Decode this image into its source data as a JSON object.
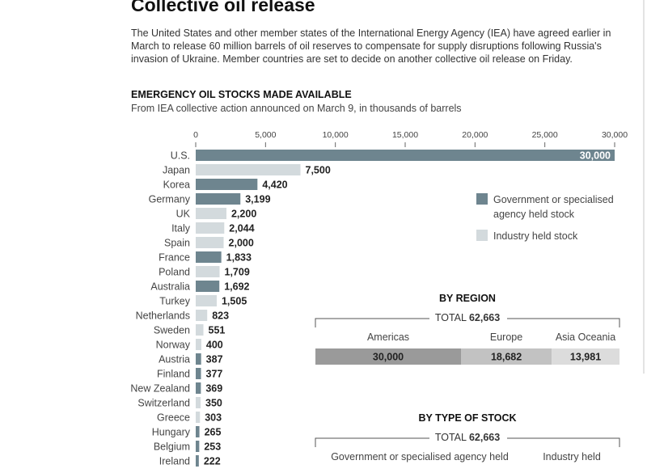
{
  "title": "Collective oil release",
  "intro": "The United States and other member states of the International Energy Agency (IEA) have agreed earlier in March to release 60 million barrels of oil reserves to compensate for supply disruptions following Russia's invasion of Ukraine. Member countries are set to decide on another collective oil release on Friday.",
  "colors": {
    "government": "#6e858f",
    "industry": "#d3dadd",
    "americas": "#9a9a9a",
    "europe": "#c2c2c2",
    "asia": "#dcdcdc"
  },
  "chart_data": [
    {
      "type": "bar",
      "orientation": "horizontal",
      "title": "EMERGENCY OIL STOCKS MADE AVAILABLE",
      "subtitle": "From IEA collective action announced on March 9, in thousands of barrels",
      "xlim": [
        0,
        30000
      ],
      "xticks": [
        0,
        5000,
        10000,
        15000,
        20000,
        25000,
        30000
      ],
      "xtick_labels": [
        "0",
        "5,000",
        "10,000",
        "15,000",
        "20,000",
        "25,000",
        "30,000"
      ],
      "legend_position": "right",
      "legend": [
        {
          "key": "government",
          "label_line1": "Government or specialised",
          "label_line2": "agency held stock"
        },
        {
          "key": "industry",
          "label_line1": "Industry held stock",
          "label_line2": ""
        }
      ],
      "bars": [
        {
          "country": "U.S.",
          "value": 30000,
          "label": "30,000",
          "stock": "government"
        },
        {
          "country": "Japan",
          "value": 7500,
          "label": "7,500",
          "stock": "industry"
        },
        {
          "country": "Korea",
          "value": 4420,
          "label": "4,420",
          "stock": "government"
        },
        {
          "country": "Germany",
          "value": 3199,
          "label": "3,199",
          "stock": "government"
        },
        {
          "country": "UK",
          "value": 2200,
          "label": "2,200",
          "stock": "industry"
        },
        {
          "country": "Italy",
          "value": 2044,
          "label": "2,044",
          "stock": "industry"
        },
        {
          "country": "Spain",
          "value": 2000,
          "label": "2,000",
          "stock": "industry"
        },
        {
          "country": "France",
          "value": 1833,
          "label": "1,833",
          "stock": "government"
        },
        {
          "country": "Poland",
          "value": 1709,
          "label": "1,709",
          "stock": "industry"
        },
        {
          "country": "Australia",
          "value": 1692,
          "label": "1,692",
          "stock": "government"
        },
        {
          "country": "Turkey",
          "value": 1505,
          "label": "1,505",
          "stock": "industry"
        },
        {
          "country": "Netherlands",
          "value": 823,
          "label": "823",
          "stock": "industry"
        },
        {
          "country": "Sweden",
          "value": 551,
          "label": "551",
          "stock": "industry"
        },
        {
          "country": "Norway",
          "value": 400,
          "label": "400",
          "stock": "industry"
        },
        {
          "country": "Austria",
          "value": 387,
          "label": "387",
          "stock": "government"
        },
        {
          "country": "Finland",
          "value": 377,
          "label": "377",
          "stock": "government"
        },
        {
          "country": "New Zealand",
          "value": 369,
          "label": "369",
          "stock": "government"
        },
        {
          "country": "Switzerland",
          "value": 350,
          "label": "350",
          "stock": "industry"
        },
        {
          "country": "Greece",
          "value": 303,
          "label": "303",
          "stock": "industry"
        },
        {
          "country": "Hungary",
          "value": 265,
          "label": "265",
          "stock": "government"
        },
        {
          "country": "Belgium",
          "value": 253,
          "label": "253",
          "stock": "government"
        },
        {
          "country": "Ireland",
          "value": 222,
          "label": "222",
          "stock": "government"
        }
      ]
    },
    {
      "type": "bar",
      "orientation": "stacked-horizontal",
      "title": "BY REGION",
      "total_label": "TOTAL",
      "total_value": "62,663",
      "segments": [
        {
          "name": "Americas",
          "value": 30000,
          "label": "30,000",
          "key": "americas"
        },
        {
          "name": "Europe",
          "value": 18682,
          "label": "18,682",
          "key": "europe"
        },
        {
          "name": "Asia Oceania",
          "value": 13981,
          "label": "13,981",
          "key": "asia"
        }
      ]
    },
    {
      "type": "bar",
      "orientation": "stacked-horizontal",
      "title": "BY TYPE OF STOCK",
      "total_label": "TOTAL",
      "total_value": "62,663",
      "segments": [
        {
          "name": "Government or specialised agency held",
          "key": "government"
        },
        {
          "name": "Industry held",
          "key": "industry"
        }
      ]
    }
  ]
}
